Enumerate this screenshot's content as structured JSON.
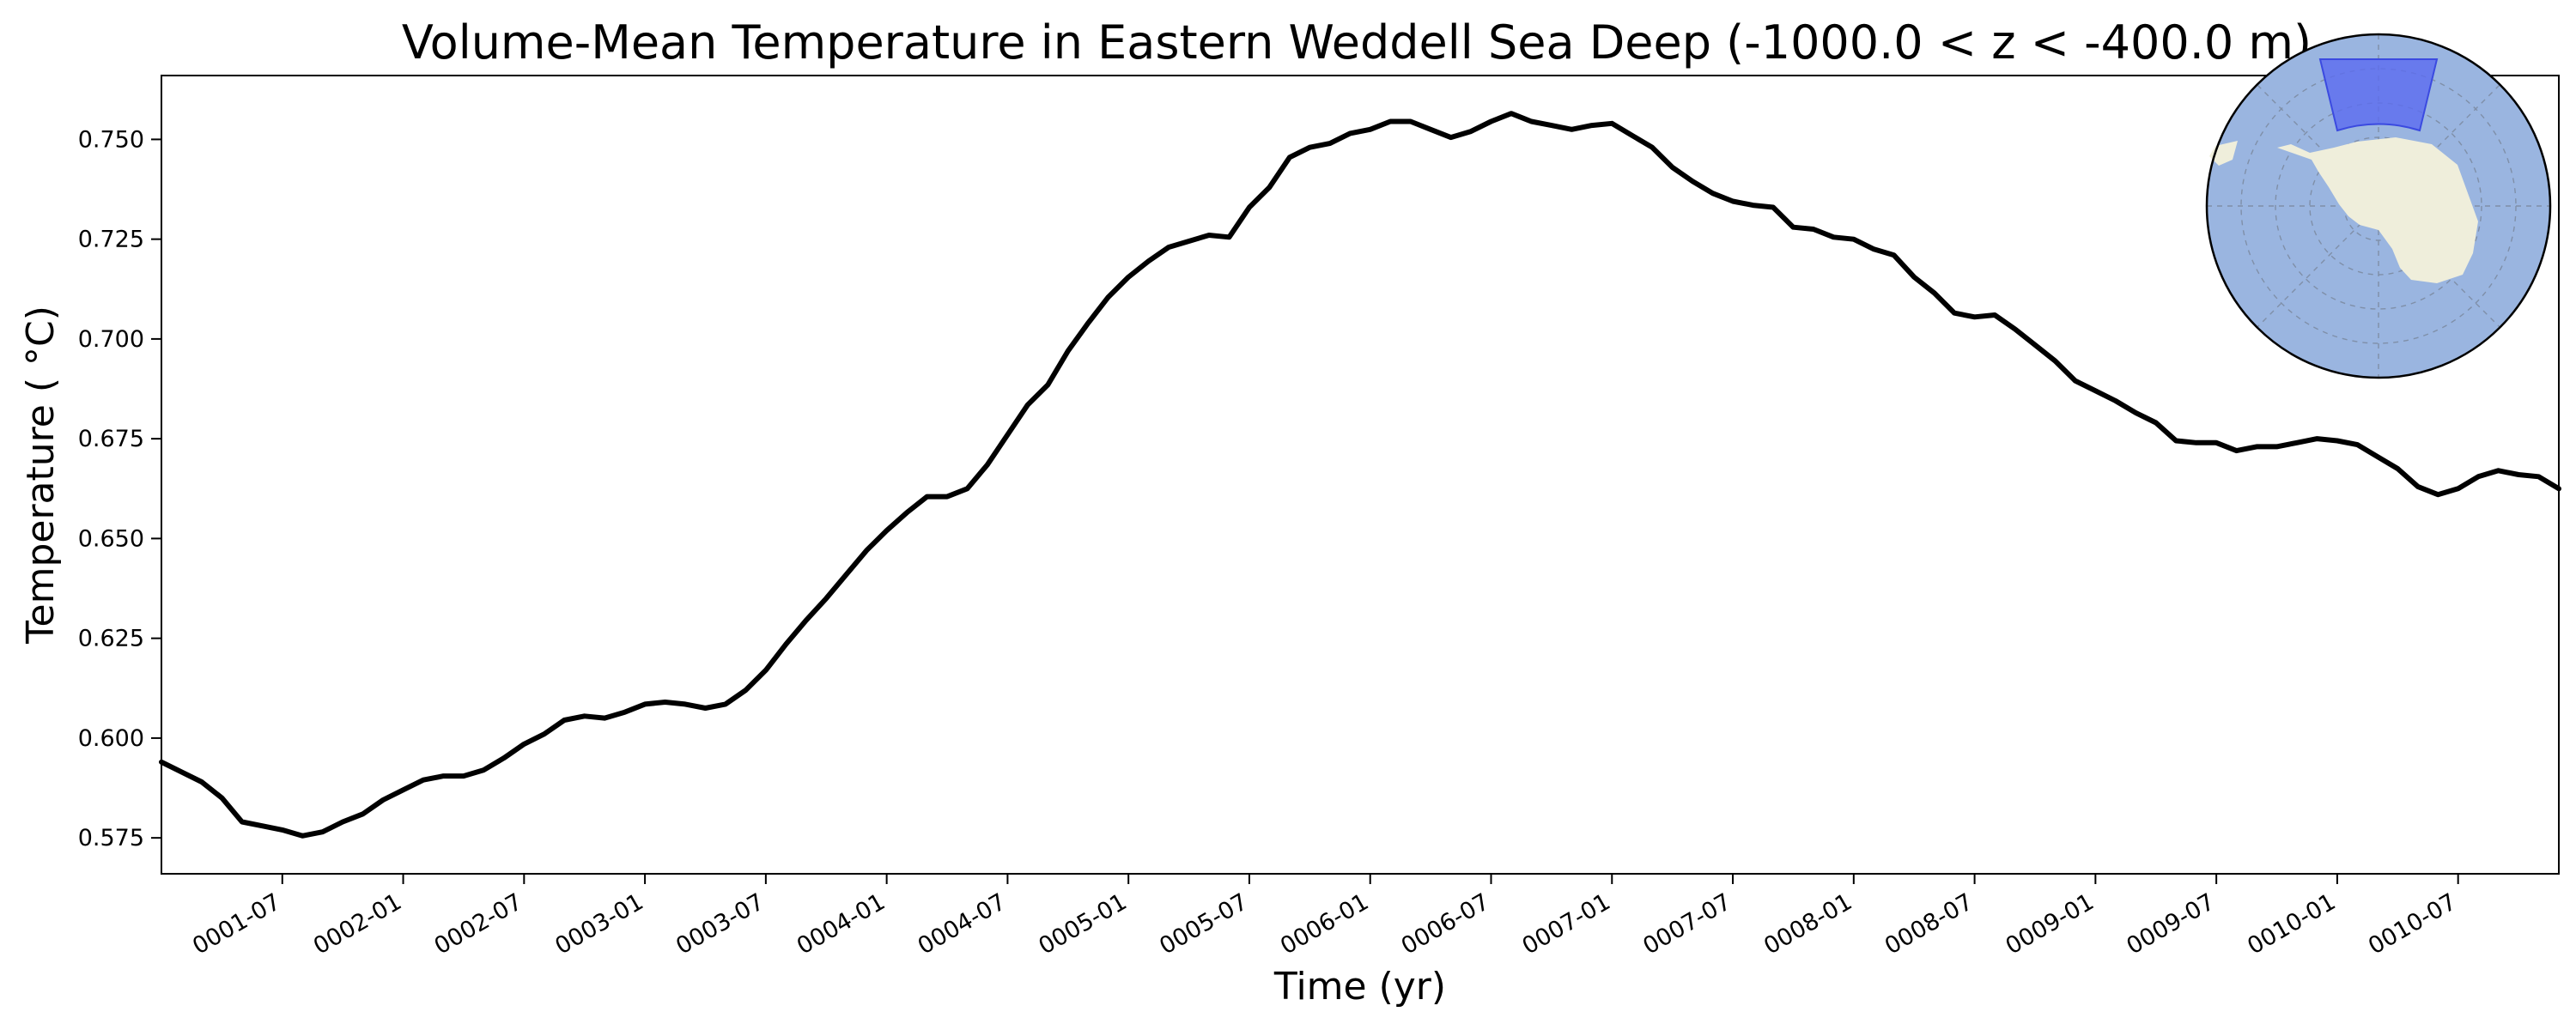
{
  "chart_data": {
    "type": "line",
    "title": "Volume-Mean Temperature in Eastern Weddell Sea Deep (-1000.0 < z < -400.0 m)",
    "xlabel": "Time (yr)",
    "ylabel": "Temperature ( °C)",
    "x_tick_labels": [
      "0001-07",
      "0002-01",
      "0002-07",
      "0003-01",
      "0003-07",
      "0004-01",
      "0004-07",
      "0005-01",
      "0005-07",
      "0006-01",
      "0006-07",
      "0007-01",
      "0007-07",
      "0008-01",
      "0008-07",
      "0009-01",
      "0009-07",
      "0010-01",
      "0010-07"
    ],
    "y_ticks": [
      0.575,
      0.6,
      0.625,
      0.65,
      0.675,
      0.7,
      0.725,
      0.75
    ],
    "ylim": [
      0.566,
      0.766
    ],
    "grid": false,
    "legend": "none",
    "x_unit": "months since 0001-01",
    "series": [
      {
        "x": [
          0,
          1,
          2,
          3,
          4,
          5,
          6,
          7,
          8,
          9,
          10,
          11,
          12,
          13,
          14,
          15,
          16,
          17,
          18,
          19,
          20,
          21,
          22,
          23,
          24,
          25,
          26,
          27,
          28,
          29,
          30,
          31,
          32,
          33,
          34,
          35,
          36,
          37,
          38,
          39,
          40,
          41,
          42,
          43,
          44,
          45,
          46,
          47,
          48,
          49,
          50,
          51,
          52,
          53,
          54,
          55,
          56,
          57,
          58,
          59,
          60,
          61,
          62,
          63,
          64,
          65,
          66,
          67,
          68,
          69,
          70,
          71,
          72,
          73,
          74,
          75,
          76,
          77,
          78,
          79,
          80,
          81,
          82,
          83,
          84,
          85,
          86,
          87,
          88,
          89,
          90,
          91,
          92,
          93,
          94,
          95,
          96,
          97,
          98,
          99,
          100,
          101,
          102,
          103,
          104,
          105,
          106,
          107,
          108,
          109,
          110,
          111,
          112,
          113,
          114,
          115,
          116,
          117,
          118,
          119
        ],
        "values": [
          0.594,
          0.5915,
          0.589,
          0.585,
          0.579,
          0.578,
          0.577,
          0.5755,
          0.5765,
          0.579,
          0.581,
          0.5845,
          0.587,
          0.5895,
          0.5905,
          0.5905,
          0.592,
          0.595,
          0.5985,
          0.601,
          0.6045,
          0.6055,
          0.605,
          0.6065,
          0.6085,
          0.609,
          0.6085,
          0.6075,
          0.6085,
          0.612,
          0.617,
          0.6235,
          0.6295,
          0.635,
          0.641,
          0.647,
          0.652,
          0.6565,
          0.6605,
          0.6605,
          0.6625,
          0.6685,
          0.676,
          0.6835,
          0.6885,
          0.697,
          0.704,
          0.7105,
          0.7155,
          0.7195,
          0.723,
          0.7245,
          0.726,
          0.7255,
          0.733,
          0.738,
          0.7455,
          0.748,
          0.749,
          0.7515,
          0.7525,
          0.7545,
          0.7545,
          0.7525,
          0.7505,
          0.752,
          0.7545,
          0.7565,
          0.7545,
          0.7535,
          0.7525,
          0.7535,
          0.754,
          0.751,
          0.748,
          0.743,
          0.7395,
          0.7365,
          0.7345,
          0.7335,
          0.733,
          0.728,
          0.7275,
          0.7255,
          0.725,
          0.7225,
          0.721,
          0.7155,
          0.7115,
          0.7065,
          0.7055,
          0.706,
          0.7025,
          0.6985,
          0.6945,
          0.6895,
          0.687,
          0.6845,
          0.6815,
          0.679,
          0.6745,
          0.674,
          0.674,
          0.672,
          0.673,
          0.673,
          0.674,
          0.675,
          0.6745,
          0.6735,
          0.6705,
          0.6675,
          0.663,
          0.661,
          0.6625,
          0.6655,
          0.667,
          0.666,
          0.6655,
          0.6625
        ]
      }
    ]
  },
  "inset_map": {
    "ocean_color": "#9ab5e0",
    "land_color": "#efeedb",
    "region_color": "#5b6cf0"
  }
}
